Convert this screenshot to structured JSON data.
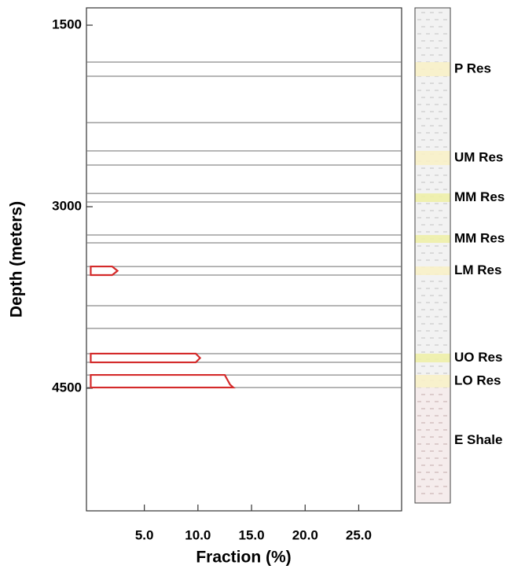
{
  "chart_data": {
    "type": "depth-profile",
    "xlabel": "Fraction (%)",
    "ylabel": "Depth (meters)",
    "xlim": [
      -0.4,
      29
    ],
    "ylim": [
      1357,
      5513
    ],
    "y_inverted": true,
    "xticks": [
      {
        "value": 5,
        "label": "5.0"
      },
      {
        "value": 10,
        "label": "10.0"
      },
      {
        "value": 15,
        "label": "15.0"
      },
      {
        "value": 20,
        "label": "20.0"
      },
      {
        "value": 25,
        "label": "25.0"
      }
    ],
    "yticks": [
      1500,
      3000,
      4500
    ],
    "profile_color": "#d42a2a",
    "boundary_color": "#6e6e6e",
    "series": [
      {
        "depth": [
          3494,
          3530,
          3565
        ],
        "values": [
          2.0,
          2.5,
          2.0
        ]
      },
      {
        "depth": [
          4214,
          4250,
          4286
        ],
        "values": [
          9.8,
          10.2,
          9.8
        ]
      },
      {
        "depth": [
          4390,
          4470,
          4494
        ],
        "values": [
          12.5,
          13.0,
          13.3
        ]
      }
    ],
    "boundaries": [
      2305,
      3818,
      4006
    ],
    "column_range": [
      1357,
      5448
    ],
    "column_color": "#f2f2f2",
    "zones": [
      {
        "label": "P Res",
        "top": 1805,
        "bottom": 1922,
        "color": "#f8f1c8"
      },
      {
        "label": "UM Res",
        "top": 2539,
        "bottom": 2656,
        "color": "#f8f1c8"
      },
      {
        "label": "MM Res",
        "top": 2890,
        "bottom": 2961,
        "color": "#eef0a8"
      },
      {
        "label": "MM Res",
        "top": 3234,
        "bottom": 3299,
        "color": "#eef0a8"
      },
      {
        "label": "LM Res",
        "top": 3494,
        "bottom": 3565,
        "color": "#f8f1c8"
      },
      {
        "label": "UO Res",
        "top": 4214,
        "bottom": 4286,
        "color": "#eef0a8"
      },
      {
        "label": "LO Res",
        "top": 4390,
        "bottom": 4494,
        "color": "#f8f1c8"
      }
    ],
    "shale": {
      "label": "E Shale",
      "top": 4494,
      "bottom": 5448,
      "color": "#f5ecec"
    }
  }
}
